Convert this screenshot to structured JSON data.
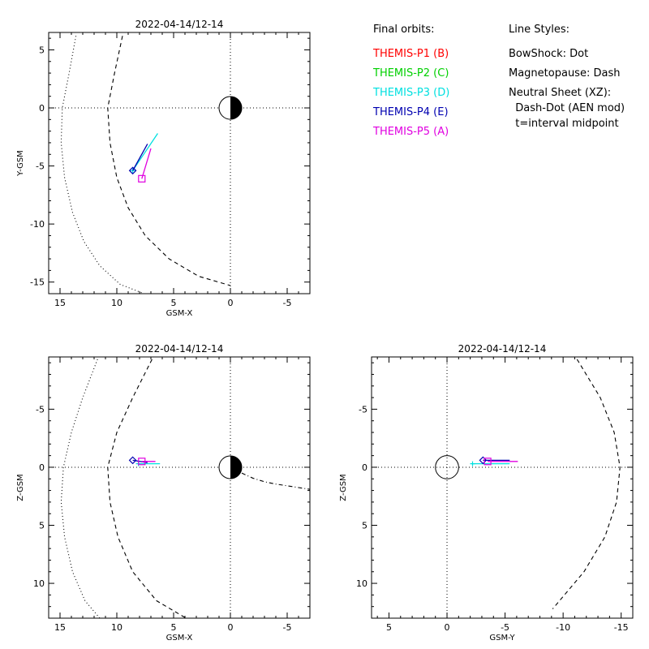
{
  "legend": {
    "orbits_title": "Final orbits:",
    "probes": [
      {
        "label": "THEMIS-P1 (B)",
        "color": "#ff0000"
      },
      {
        "label": "THEMIS-P2 (C)",
        "color": "#00d000"
      },
      {
        "label": "THEMIS-P3 (D)",
        "color": "#00e0e0"
      },
      {
        "label": "THEMIS-P4 (E)",
        "color": "#0000b0"
      },
      {
        "label": "THEMIS-P5 (A)",
        "color": "#e000e0"
      }
    ],
    "styles_title": "Line Styles:",
    "styles": [
      "BowShock: Dot",
      "Magnetopause: Dash",
      "Neutral Sheet (XZ):",
      "  Dash-Dot (AEN mod)",
      "  t=interval midpoint"
    ]
  },
  "chart_data": [
    {
      "type": "line",
      "title": "2022-04-14/12-14",
      "xlabel": "GSM-X",
      "ylabel": "Y-GSM",
      "xlim": [
        16,
        -7
      ],
      "ylim": [
        6.5,
        -16
      ],
      "xticks": [
        15,
        10,
        5,
        0,
        -5
      ],
      "yticks": [
        5,
        0,
        -5,
        -10,
        -15
      ],
      "bowshock": {
        "x": [
          13.6,
          14.2,
          14.8,
          14.9,
          14.6,
          13.9,
          12.9,
          11.5,
          9.7,
          7.6
        ],
        "y": [
          6.2,
          3.0,
          0.0,
          -3.0,
          -6.0,
          -9.0,
          -11.5,
          -13.6,
          -15.2,
          -16.0
        ]
      },
      "magnetopause": {
        "x": [
          9.5,
          10.2,
          10.8,
          10.6,
          10.0,
          9.0,
          7.5,
          5.4,
          2.8,
          0.0
        ],
        "y": [
          6.2,
          3.0,
          0.0,
          -3.0,
          -6.0,
          -8.6,
          -11.0,
          -13.0,
          -14.5,
          -15.3
        ]
      },
      "probes": [
        {
          "name": "THEMIS-P3 (D)",
          "x": [
            8.6,
            6.4
          ],
          "y": [
            -5.4,
            -2.2
          ]
        },
        {
          "name": "THEMIS-P4 (E)",
          "x": [
            8.6,
            7.3
          ],
          "y": [
            -5.4,
            -3.1
          ]
        },
        {
          "name": "THEMIS-P5 (A)",
          "x": [
            7.8,
            7.0
          ],
          "y": [
            -6.1,
            -3.5
          ]
        }
      ]
    },
    {
      "type": "line",
      "title": "2022-04-14/12-14",
      "xlabel": "GSM-X",
      "ylabel": "Z-GSM",
      "xlim": [
        16,
        -7
      ],
      "ylim": [
        -9.5,
        13
      ],
      "xticks": [
        15,
        10,
        5,
        0,
        -5
      ],
      "yticks": [
        10,
        5,
        0,
        -5
      ],
      "bowshock": {
        "x": [
          11.7,
          13.0,
          14.0,
          14.7,
          14.9,
          14.6,
          13.9,
          12.8,
          11.5
        ],
        "y": [
          -9.3,
          -6.0,
          -3.0,
          0.0,
          3.0,
          6.0,
          9.0,
          11.5,
          13.0
        ]
      },
      "magnetopause": {
        "x": [
          6.9,
          8.6,
          10.0,
          10.8,
          10.6,
          9.9,
          8.6,
          6.5,
          3.9
        ],
        "y": [
          -9.3,
          -6.0,
          -3.0,
          0.0,
          3.0,
          6.0,
          9.0,
          11.5,
          13.0
        ]
      },
      "neutral_sheet": {
        "x": [
          -1.0,
          -2.0,
          -3.0,
          -4.0,
          -5.0,
          -6.0,
          -7.0
        ],
        "y": [
          0.5,
          0.95,
          1.25,
          1.45,
          1.6,
          1.75,
          1.9
        ]
      },
      "probes": [
        {
          "name": "THEMIS-P3 (D)",
          "x": [
            8.1,
            6.2
          ],
          "y": [
            -0.3,
            -0.3
          ]
        },
        {
          "name": "THEMIS-P4 (E)",
          "x": [
            8.6,
            7.3
          ],
          "y": [
            -0.6,
            -0.4
          ]
        },
        {
          "name": "THEMIS-P5 (A)",
          "x": [
            7.8,
            6.6
          ],
          "y": [
            -0.5,
            -0.5
          ]
        }
      ]
    },
    {
      "type": "line",
      "title": "2022-04-14/12-14",
      "xlabel": "GSM-Y",
      "ylabel": "Z-GSM",
      "xlim": [
        6.5,
        -16
      ],
      "ylim": [
        -9.5,
        13
      ],
      "xticks": [
        5,
        0,
        -5,
        -10,
        -15
      ],
      "yticks": [
        10,
        5,
        0,
        -5
      ],
      "magnetopause": {
        "x": [
          -11.2,
          -13.2,
          -14.4,
          -14.9,
          -14.6,
          -13.6,
          -11.8,
          -9.1
        ],
        "y": [
          -9.3,
          -6.0,
          -3.0,
          0.0,
          3.0,
          6.0,
          9.0,
          12.2
        ]
      },
      "probes": [
        {
          "name": "THEMIS-P3 (D)",
          "x": [
            -2.2,
            -5.4
          ],
          "y": [
            -0.3,
            -0.3
          ]
        },
        {
          "name": "THEMIS-P4 (E)",
          "x": [
            -3.1,
            -5.4
          ],
          "y": [
            -0.6,
            -0.6
          ]
        },
        {
          "name": "THEMIS-P5 (A)",
          "x": [
            -3.5,
            -6.1
          ],
          "y": [
            -0.5,
            -0.5
          ]
        }
      ]
    }
  ]
}
